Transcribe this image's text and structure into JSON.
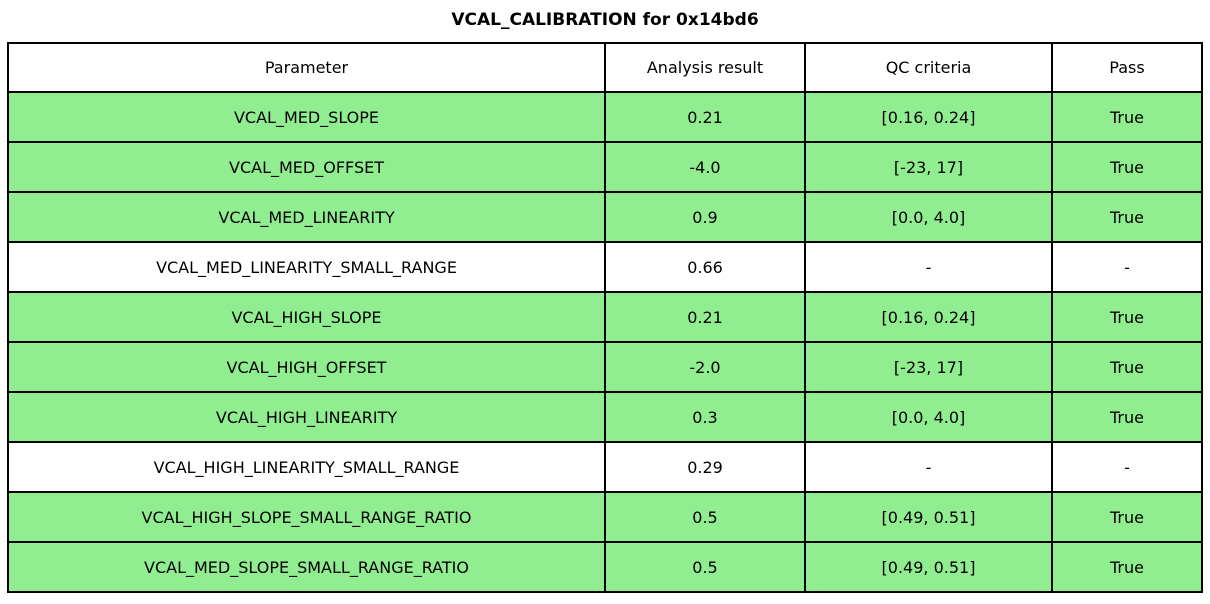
{
  "title": "VCAL_CALIBRATION for 0x14bd6",
  "chart_data": {
    "type": "table",
    "title": "VCAL_CALIBRATION for 0x14bd6",
    "columns": [
      "Parameter",
      "Analysis result",
      "QC criteria",
      "Pass"
    ],
    "rows": [
      [
        "VCAL_MED_SLOPE",
        "0.21",
        "[0.16, 0.24]",
        "True"
      ],
      [
        "VCAL_MED_OFFSET",
        "-4.0",
        "[-23, 17]",
        "True"
      ],
      [
        "VCAL_MED_LINEARITY",
        "0.9",
        "[0.0, 4.0]",
        "True"
      ],
      [
        "VCAL_MED_LINEARITY_SMALL_RANGE",
        "0.66",
        "-",
        "-"
      ],
      [
        "VCAL_HIGH_SLOPE",
        "0.21",
        "[0.16, 0.24]",
        "True"
      ],
      [
        "VCAL_HIGH_OFFSET",
        "-2.0",
        "[-23, 17]",
        "True"
      ],
      [
        "VCAL_HIGH_LINEARITY",
        "0.3",
        "[0.0, 4.0]",
        "True"
      ],
      [
        "VCAL_HIGH_LINEARITY_SMALL_RANGE",
        "0.29",
        "-",
        "-"
      ],
      [
        "VCAL_HIGH_SLOPE_SMALL_RANGE_RATIO",
        "0.5",
        "[0.49, 0.51]",
        "True"
      ],
      [
        "VCAL_MED_SLOPE_SMALL_RANGE_RATIO",
        "0.5",
        "[0.49, 0.51]",
        "True"
      ]
    ],
    "row_highlight": [
      true,
      true,
      true,
      false,
      true,
      true,
      true,
      false,
      true,
      true
    ],
    "layout": {
      "legend": "none",
      "grid": "table-borders"
    }
  },
  "colors": {
    "row_highlight_bg": "#90EE90",
    "row_plain_bg": "#FFFFFF",
    "border": "#000000",
    "text": "#000000",
    "background": "#FFFFFF"
  }
}
